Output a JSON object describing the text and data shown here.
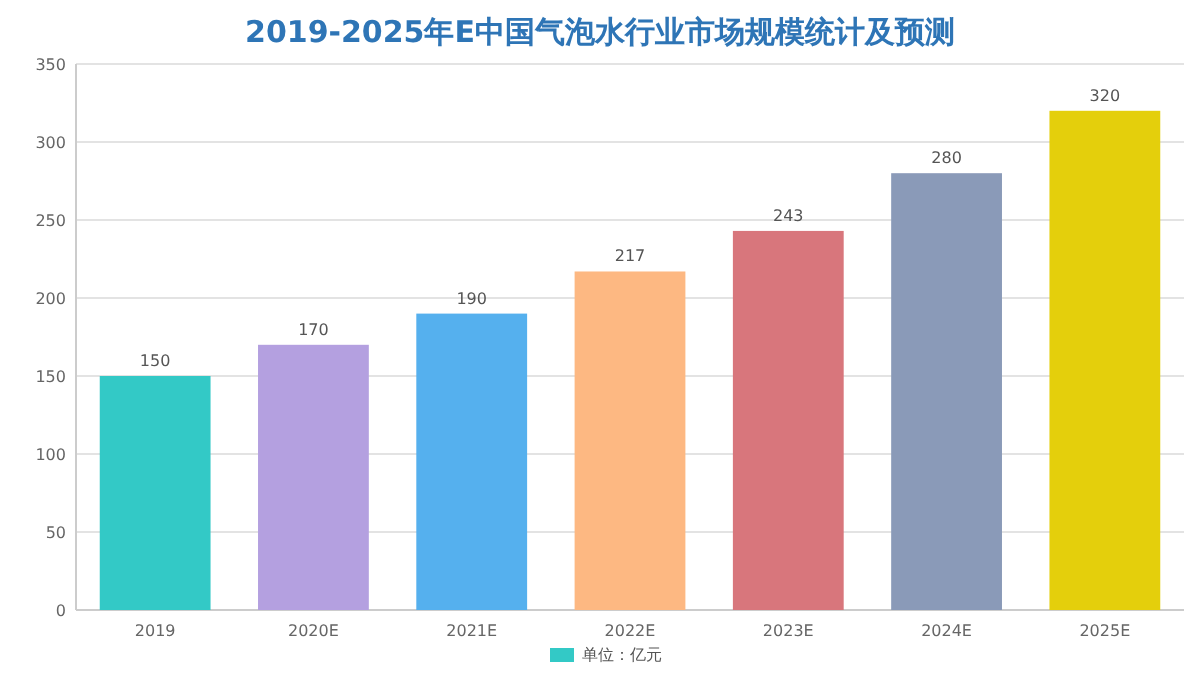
{
  "chart_data": {
    "type": "bar",
    "title": "2019-2025年E中国气泡水行业市场规模统计及预测",
    "categories": [
      "2019",
      "2020E",
      "2021E",
      "2022E",
      "2023E",
      "2024E",
      "2025E"
    ],
    "series": [
      {
        "name": "单位：亿元",
        "color": "#33c9c6",
        "colors": [
          "#33c9c6",
          "#b4a0e0",
          "#55b0ee",
          "#fdb882",
          "#d8767c",
          "#8a9ab8",
          "#e4cf0c"
        ],
        "values": [
          150,
          170,
          190,
          217,
          243,
          280,
          320
        ]
      }
    ],
    "ylim": [
      0,
      350
    ],
    "yticks": [
      0,
      50,
      100,
      150,
      200,
      250,
      300,
      350
    ],
    "grid": "y",
    "legend": "bottom",
    "data_labels": true
  }
}
